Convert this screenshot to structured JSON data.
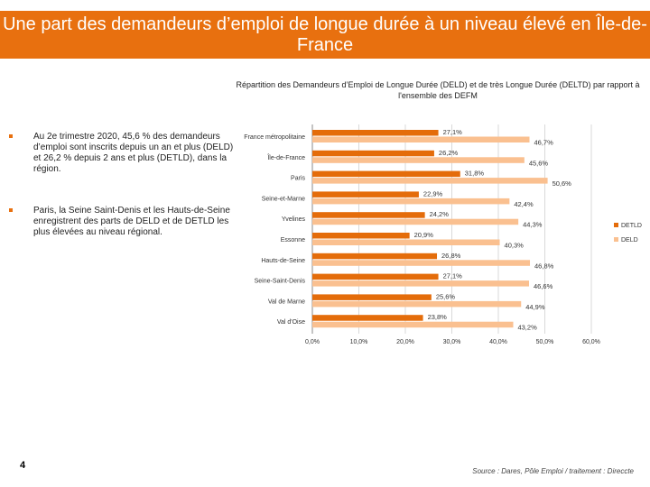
{
  "title": "Une part des demandeurs d’emploi de longue durée à un niveau élevé en Île-de-France",
  "bullets": [
    "Au 2e trimestre 2020, 45,6 % des demandeurs d’emploi sont inscrits depuis un an et plus (DELD) et 26,2 %  depuis 2 ans et plus (DETLD), dans la région.",
    "Paris, la Seine Saint-Denis et les Hauts-de-Seine enregistrent des parts de DELD et de DETLD les plus élevées au niveau régional."
  ],
  "page_number": "4",
  "source": "Source : Dares, Pôle Emploi / traitement : Direccte",
  "chart_data": {
    "type": "bar",
    "orientation": "horizontal",
    "title": "Répartition des Demandeurs d’Emploi de Longue Durée (DELD) et de très Longue Durée (DELTD) par rapport à l'ensemble des DEFM",
    "categories": [
      "France métropolitaine",
      "Île-de-France",
      "Paris",
      "Seine-et-Marne",
      "Yvelines",
      "Essonne",
      "Hauts-de-Seine",
      "Seine-Saint-Denis",
      "Val de Marne",
      "Val d'Oise"
    ],
    "series": [
      {
        "name": "DETLD",
        "color": "#e46c0a",
        "values": [
          27.1,
          26.2,
          31.8,
          22.9,
          24.2,
          20.9,
          26.8,
          27.1,
          25.6,
          23.8
        ],
        "labels": [
          "27,1%",
          "26,2%",
          "31,8%",
          "22,9%",
          "24,2%",
          "20,9%",
          "26,8%",
          "27,1%",
          "25,6%",
          "23,8%"
        ]
      },
      {
        "name": "DELD",
        "color": "#fac090",
        "values": [
          46.7,
          45.6,
          50.6,
          42.4,
          44.3,
          40.3,
          46.8,
          46.6,
          44.9,
          43.2
        ],
        "labels": [
          "46,7%",
          "45,6%",
          "50,6%",
          "42,4%",
          "44,3%",
          "40,3%",
          "46,8%",
          "46,6%",
          "44,9%",
          "43,2%"
        ]
      }
    ],
    "xlim": [
      0,
      60
    ],
    "xticks": [
      "0,0%",
      "10,0%",
      "20,0%",
      "30,0%",
      "40,0%",
      "50,0%",
      "60,0%"
    ],
    "grid": true,
    "legend": "right"
  }
}
